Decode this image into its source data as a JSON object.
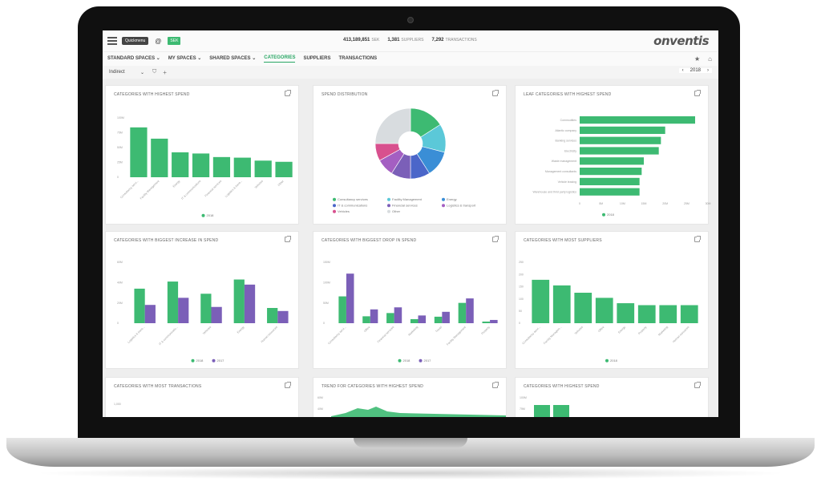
{
  "app": {
    "logo": "onventis",
    "menu_badge": "Quickmenu",
    "currency_badge": "SEK",
    "at_icon": "at-icon"
  },
  "stats": {
    "spend_value": "413,189,851",
    "spend_unit": "SEK",
    "suppliers_value": "1,381",
    "suppliers_label": "SUPPLIERS",
    "transactions_value": "7,292",
    "transactions_label": "TRANSACTIONS"
  },
  "nav": {
    "items": [
      "STANDARD SPACES ⌄",
      "MY SPACES ⌄",
      "SHARED SPACES ⌄",
      "CATEGORIES",
      "SUPPLIERS",
      "TRANSACTIONS"
    ],
    "active": "CATEGORIES"
  },
  "filter": {
    "select_value": "Indirect",
    "year": "2018"
  },
  "colors": {
    "green": "#3dba72",
    "purple": "#7b5fb8"
  },
  "panels": {
    "p1": {
      "title": "CATEGORIES WITH HIGHEST SPEND",
      "legend": [
        "2018"
      ],
      "chart_data": {
        "type": "bar",
        "categories": [
          "Consultancy servi...",
          "Facility Management",
          "Energy",
          "IT & communications",
          "Financial services",
          "Logistics & trans...",
          "Vehicles",
          "Other"
        ],
        "series": [
          {
            "name": "2018",
            "values": [
              84,
              65,
              42,
              40,
              34,
              33,
              28,
              26
            ]
          }
        ],
        "yticks": [
          "100M",
          "75M",
          "50M",
          "25M",
          "0"
        ],
        "ylim": [
          0,
          100
        ]
      }
    },
    "p2": {
      "title": "SPEND DISTRIBUTION",
      "chart_data": {
        "type": "pie",
        "labels": [
          "Consultancy services",
          "Facility Management",
          "Energy",
          "IT & communications",
          "Financial services",
          "Logistics & transport",
          "Vehicles",
          "Other"
        ],
        "values": [
          16,
          13,
          12,
          9,
          9,
          8,
          8,
          25
        ],
        "colors": [
          "#3dba72",
          "#5bc8d8",
          "#3a8ed6",
          "#4b66c9",
          "#7b5fb8",
          "#a45fc2",
          "#d8508e",
          "#d8dcdf"
        ]
      }
    },
    "p3": {
      "title": "LEAF CATEGORIES WITH HIGHEST SPEND",
      "legend": [
        "2018"
      ],
      "chart_data": {
        "type": "bar",
        "categories": [
          "Commodities",
          "Atlantic company",
          "Banking services",
          "Electricity",
          "Waste management",
          "Management consultants",
          "Vehicle leasing",
          "Warehouse and third party logistics"
        ],
        "series": [
          {
            "name": "2018",
            "values": [
              54,
              40,
              38,
              37,
              30,
              29,
              28,
              28
            ]
          }
        ],
        "xticks": [
          "0",
          "5M",
          "10M",
          "15M",
          "20M",
          "25M",
          "30M"
        ],
        "xlim": [
          0,
          60
        ]
      }
    },
    "p4": {
      "title": "CATEGORIES WITH BIGGEST INCREASE IN SPEND",
      "legend": [
        "2018",
        "2017"
      ],
      "chart_data": {
        "type": "bar",
        "categories": [
          "Logistics & trans...",
          "IT & communicatio...",
          "Vehicles",
          "Energy",
          "Human resources"
        ],
        "series": [
          {
            "name": "2018",
            "values": [
              34,
              41,
              29,
              43,
              15
            ]
          },
          {
            "name": "2017",
            "values": [
              18,
              25,
              16,
              38,
              12
            ]
          }
        ],
        "yticks": [
          "60M",
          "40M",
          "20M",
          "0"
        ],
        "ylim": [
          0,
          60
        ]
      }
    },
    "p5": {
      "title": "CATEGORIES WITH BIGGEST DROP IN SPEND",
      "legend": [
        "2018",
        "2017"
      ],
      "chart_data": {
        "type": "bar",
        "categories": [
          "Consultancy servi...",
          "Office",
          "Financial services",
          "Marketing",
          "Travel",
          "Facility Management",
          "Property"
        ],
        "series": [
          {
            "name": "2018",
            "values": [
              66,
              17,
              25,
              10,
              16,
              50,
              4
            ]
          },
          {
            "name": "2017",
            "values": [
              122,
              34,
              39,
              19,
              28,
              61,
              8
            ]
          }
        ],
        "yticks": [
          "150M",
          "100M",
          "50M",
          "0"
        ],
        "ylim": [
          0,
          150
        ]
      }
    },
    "p6": {
      "title": "CATEGORIES WITH MOST SUPPLIERS",
      "legend": [
        "2018"
      ],
      "chart_data": {
        "type": "bar",
        "categories": [
          "Consultancy servi...",
          "Facility Managem...",
          "Vehicles",
          "Office",
          "Energy",
          "Property",
          "Marketing",
          "Human resources"
        ],
        "series": [
          {
            "name": "2018",
            "values": [
              178,
              155,
              125,
              104,
              82,
              74,
              74,
              74
            ]
          }
        ],
        "yticks": [
          "250",
          "200",
          "150",
          "100",
          "50",
          "0"
        ],
        "ylim": [
          0,
          250
        ]
      }
    },
    "p7": {
      "title": "CATEGORIES WITH MOST TRANSACTIONS",
      "chart_data": {
        "type": "bar",
        "yticks": [
          "1,000"
        ]
      }
    },
    "p8": {
      "title": "TREND FOR CATEGORIES WITH HIGHEST SPEND",
      "chart_data": {
        "type": "area",
        "yticks": [
          "60M",
          "40M"
        ]
      }
    },
    "p9": {
      "title": "CATEGORIES WITH HIGHEST SPEND",
      "chart_data": {
        "type": "bar",
        "yticks": [
          "100M",
          "75M"
        ]
      }
    }
  }
}
